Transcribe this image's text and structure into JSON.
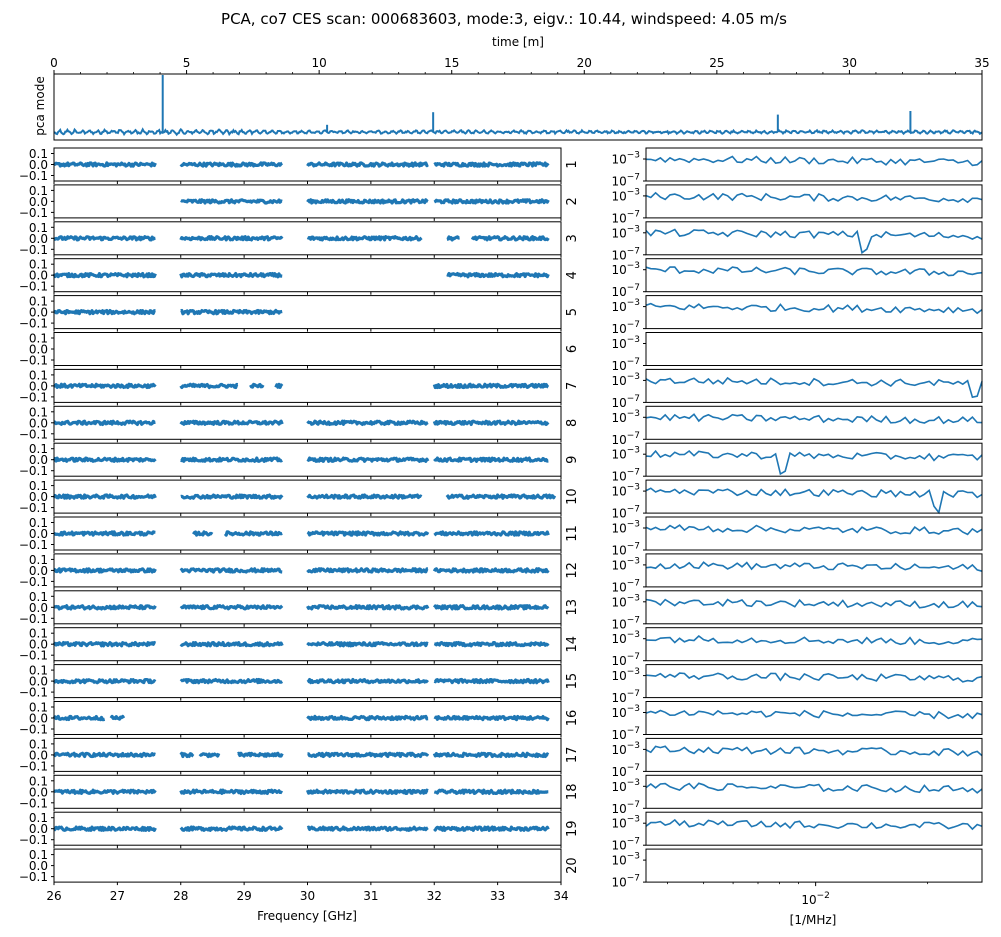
{
  "title": "PCA, co7 CES scan: 000683603, mode:3, eigv.: 10.44, windspeed: 4.05 m/s",
  "colors": {
    "line": "#1f77b4",
    "axis": "#000000",
    "background": "#ffffff"
  },
  "chart_data": [
    {
      "type": "line",
      "name": "pca-mode-timeseries",
      "xlabel": "time [m]",
      "ylabel": "pca mode",
      "xlim": [
        0,
        35
      ],
      "ylim": [
        -1,
        10
      ],
      "xticks": [
        "0",
        "5",
        "10",
        "15",
        "20",
        "25",
        "30",
        "35"
      ],
      "baseline": 0,
      "spikes": [
        {
          "x": 4.1,
          "y": 9.5
        },
        {
          "x": 10.3,
          "y": 1.2
        },
        {
          "x": 14.3,
          "y": 3.3
        },
        {
          "x": 27.3,
          "y": 2.9
        },
        {
          "x": 32.3,
          "y": 3.5
        }
      ]
    },
    {
      "type": "scatter",
      "name": "feed-spectra",
      "xlabel": "Frequency [GHz]",
      "xlim": [
        26,
        34
      ],
      "ylim": [
        -0.15,
        0.15
      ],
      "xticks": [
        "26",
        "27",
        "28",
        "29",
        "30",
        "31",
        "32",
        "33",
        "34"
      ],
      "yticks": [
        "0.1",
        "0.0",
        "−0.1"
      ],
      "feeds": [
        "1",
        "2",
        "3",
        "4",
        "5",
        "6",
        "7",
        "8",
        "9",
        "10",
        "11",
        "12",
        "13",
        "14",
        "15",
        "16",
        "17",
        "18",
        "19",
        "20"
      ],
      "segments": [
        [
          [
            26.0,
            27.6
          ],
          [
            28.0,
            29.6
          ],
          [
            30.0,
            31.9
          ],
          [
            32.0,
            33.8
          ]
        ],
        [
          [
            28.0,
            29.6
          ],
          [
            30.0,
            31.9
          ],
          [
            32.0,
            33.8
          ]
        ],
        [
          [
            26.0,
            27.6
          ],
          [
            28.0,
            29.6
          ],
          [
            30.0,
            31.8
          ],
          [
            32.2,
            32.4
          ],
          [
            32.6,
            33.8
          ]
        ],
        [
          [
            26.0,
            27.6
          ],
          [
            28.0,
            29.6
          ],
          [
            32.2,
            33.8
          ]
        ],
        [
          [
            26.0,
            27.6
          ],
          [
            28.0,
            29.6
          ]
        ],
        [],
        [
          [
            26.0,
            27.6
          ],
          [
            28.0,
            28.9
          ],
          [
            29.1,
            29.3
          ],
          [
            29.5,
            29.6
          ],
          [
            32.0,
            33.8
          ]
        ],
        [
          [
            26.0,
            27.6
          ],
          [
            28.0,
            29.6
          ],
          [
            30.0,
            31.9
          ],
          [
            32.0,
            33.8
          ]
        ],
        [
          [
            26.0,
            27.6
          ],
          [
            28.0,
            29.6
          ],
          [
            30.0,
            31.9
          ],
          [
            32.0,
            33.8
          ]
        ],
        [
          [
            26.0,
            27.6
          ],
          [
            28.0,
            29.6
          ],
          [
            30.0,
            31.8
          ],
          [
            32.2,
            33.9
          ]
        ],
        [
          [
            26.0,
            27.6
          ],
          [
            28.2,
            28.5
          ],
          [
            28.7,
            29.6
          ],
          [
            30.0,
            31.9
          ],
          [
            32.0,
            33.8
          ]
        ],
        [
          [
            26.0,
            27.6
          ],
          [
            28.0,
            29.6
          ],
          [
            30.0,
            31.9
          ],
          [
            32.0,
            33.8
          ]
        ],
        [
          [
            26.0,
            27.6
          ],
          [
            28.0,
            29.6
          ],
          [
            30.0,
            31.9
          ],
          [
            32.0,
            33.8
          ]
        ],
        [
          [
            26.0,
            27.6
          ],
          [
            28.0,
            29.6
          ],
          [
            30.0,
            31.9
          ],
          [
            32.0,
            33.8
          ]
        ],
        [
          [
            26.0,
            27.6
          ],
          [
            28.0,
            29.6
          ],
          [
            30.0,
            31.9
          ],
          [
            32.0,
            33.8
          ]
        ],
        [
          [
            26.0,
            26.8
          ],
          [
            26.9,
            27.1
          ],
          [
            30.0,
            31.9
          ],
          [
            32.0,
            33.8
          ]
        ],
        [
          [
            26.0,
            27.6
          ],
          [
            28.0,
            28.2
          ],
          [
            28.3,
            28.6
          ],
          [
            28.9,
            29.6
          ],
          [
            30.0,
            31.9
          ],
          [
            32.0,
            33.8
          ]
        ],
        [
          [
            26.0,
            27.6
          ],
          [
            28.0,
            29.6
          ],
          [
            30.0,
            31.9
          ],
          [
            32.0,
            33.8
          ]
        ],
        [
          [
            26.0,
            27.6
          ],
          [
            28.0,
            29.6
          ],
          [
            30.0,
            31.9
          ],
          [
            32.0,
            33.8
          ]
        ],
        []
      ]
    },
    {
      "type": "line",
      "name": "feed-power-spectra",
      "xlabel": "[1/MHz]",
      "xscale": "log",
      "yscale": "log",
      "xlim": [
        0.0035,
        0.028
      ],
      "ylim": [
        1e-07,
        0.1
      ],
      "xtick_label": "10−2",
      "yticks": [
        "10−3",
        "10−7"
      ],
      "ytick_base": "10",
      "ytick_exponents": [
        "−3",
        "−7"
      ],
      "xtick_base": "10",
      "xtick_exponent": "−2",
      "empty_feeds": [
        6,
        20
      ],
      "dips": {
        "3": [
          0.0135
        ],
        "7": [
          0.027
        ],
        "9": [
          0.0082
        ],
        "10": [
          0.021
        ]
      }
    }
  ]
}
